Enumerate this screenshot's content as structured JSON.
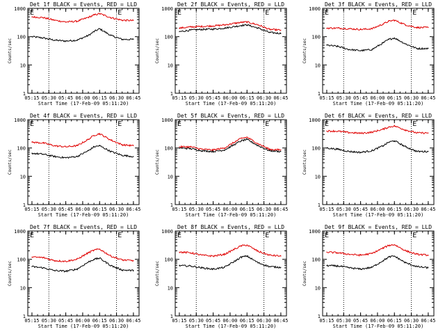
{
  "figure": {
    "title_template": "Det {n}f BLACK = Events, RED = LLD",
    "footer": "Start Time (17-Feb-09 05:11:20)",
    "xlabel": "Start Time (17-Feb-09 05:11:20)",
    "ylabel": "Counts/sec",
    "colors": {
      "events": "#000000",
      "lld": "#e00000",
      "axes": "#000000"
    }
  },
  "chart_data": [
    {
      "type": "line",
      "panel": "det-1f",
      "title": "Det 1f BLACK = Events, RED = LLD",
      "xlabel": "Start Time (17-Feb-09 05:11:20)",
      "ylabel": "Counts/sec",
      "x_ticks": [
        "05:15",
        "05:30",
        "05:45",
        "06:00",
        "06:15",
        "06:30",
        "06:45"
      ],
      "y_ticks": [
        "1",
        "10",
        "100",
        "1000"
      ],
      "y_scale": "log",
      "ylim": [
        1,
        1000
      ],
      "xlim": [
        "05:11:20",
        "06:50:00"
      ],
      "x": [
        "05:15",
        "05:25",
        "05:35",
        "05:45",
        "05:55",
        "06:05",
        "06:10",
        "06:15",
        "06:25",
        "06:35",
        "06:45"
      ],
      "series": [
        {
          "values": [
            100,
            90,
            75,
            70,
            75,
            110,
            150,
            190,
            110,
            80,
            80
          ]
        },
        {
          "values": [
            500,
            470,
            380,
            330,
            350,
            480,
            580,
            650,
            470,
            380,
            370
          ]
        }
      ],
      "markers": [
        "E"
      ]
    },
    {
      "type": "line",
      "panel": "det-2f",
      "title": "Det 2f BLACK = Events, RED = LLD",
      "xlabel": "Start Time (17-Feb-09 05:11:20)",
      "ylabel": "Counts/sec",
      "x_ticks": [
        "05:15",
        "05:30",
        "05:45",
        "06:00",
        "06:15",
        "06:30",
        "06:45"
      ],
      "y_ticks": [
        "1",
        "10",
        "100",
        "1000"
      ],
      "y_scale": "log",
      "ylim": [
        1,
        1000
      ],
      "xlim": [
        "05:11:20",
        "06:50:00"
      ],
      "x": [
        "05:15",
        "05:25",
        "05:35",
        "05:45",
        "05:55",
        "06:05",
        "06:10",
        "06:15",
        "06:25",
        "06:35",
        "06:45"
      ],
      "series": [
        {
          "values": [
            150,
            170,
            180,
            185,
            200,
            230,
            250,
            260,
            200,
            140,
            130
          ]
        },
        {
          "values": [
            200,
            220,
            230,
            240,
            260,
            300,
            320,
            330,
            260,
            180,
            170
          ]
        }
      ],
      "markers": [
        "E"
      ]
    },
    {
      "type": "line",
      "panel": "det-3f",
      "title": "Det 3f BLACK = Events, RED = LLD",
      "xlabel": "Start Time (17-Feb-09 05:11:20)",
      "ylabel": "Counts/sec",
      "x_ticks": [
        "05:15",
        "05:30",
        "05:45",
        "06:00",
        "06:15",
        "06:30",
        "06:45"
      ],
      "y_ticks": [
        "1",
        "10",
        "100",
        "1000"
      ],
      "y_scale": "log",
      "ylim": [
        1,
        1000
      ],
      "xlim": [
        "05:11:20",
        "06:50:00"
      ],
      "x": [
        "05:15",
        "05:25",
        "05:35",
        "05:45",
        "05:55",
        "06:05",
        "06:10",
        "06:15",
        "06:25",
        "06:35",
        "06:45"
      ],
      "series": [
        {
          "values": [
            50,
            45,
            35,
            32,
            35,
            60,
            80,
            90,
            55,
            38,
            38
          ]
        },
        {
          "values": [
            200,
            200,
            190,
            180,
            190,
            280,
            350,
            380,
            260,
            210,
            210
          ]
        }
      ],
      "markers": [
        "E"
      ]
    },
    {
      "type": "line",
      "panel": "det-4f",
      "title": "Det 4f BLACK = Events, RED = LLD",
      "xlabel": "Start Time (17-Feb-09 05:11:20)",
      "ylabel": "Counts/sec",
      "x_ticks": [
        "05:15",
        "05:30",
        "05:45",
        "06:00",
        "06:15",
        "06:30",
        "06:45"
      ],
      "y_ticks": [
        "1",
        "10",
        "100",
        "1000"
      ],
      "y_scale": "log",
      "ylim": [
        1,
        1000
      ],
      "xlim": [
        "05:11:20",
        "06:50:00"
      ],
      "x": [
        "05:15",
        "05:25",
        "05:35",
        "05:45",
        "05:55",
        "06:05",
        "06:10",
        "06:15",
        "06:25",
        "06:35",
        "06:45"
      ],
      "series": [
        {
          "values": [
            65,
            60,
            50,
            45,
            50,
            80,
            110,
            120,
            75,
            55,
            50
          ]
        },
        {
          "values": [
            160,
            150,
            120,
            110,
            120,
            200,
            280,
            320,
            190,
            130,
            120
          ]
        }
      ],
      "markers": [
        "E"
      ]
    },
    {
      "type": "line",
      "panel": "det-5f",
      "title": "Det 5f BLACK = Events, RED = LLD",
      "xlabel": "Start Time (17-Feb-09 05:11:20)",
      "ylabel": "Counts/sec",
      "x_ticks": [
        "05:15",
        "05:30",
        "05:45",
        "06:00",
        "06:15",
        "06:30",
        "06:45"
      ],
      "y_ticks": [
        "1",
        "10",
        "100",
        "1000"
      ],
      "y_scale": "log",
      "ylim": [
        1,
        1000
      ],
      "xlim": [
        "05:11:20",
        "06:50:00"
      ],
      "x": [
        "05:15",
        "05:25",
        "05:35",
        "05:45",
        "05:55",
        "06:05",
        "06:10",
        "06:15",
        "06:25",
        "06:35",
        "06:45"
      ],
      "series": [
        {
          "values": [
            100,
            95,
            80,
            75,
            85,
            140,
            180,
            200,
            120,
            80,
            75
          ]
        },
        {
          "values": [
            110,
            110,
            90,
            85,
            100,
            170,
            220,
            240,
            140,
            90,
            85
          ]
        }
      ],
      "markers": [
        "E"
      ]
    },
    {
      "type": "line",
      "panel": "det-6f",
      "title": "Det 6f BLACK = Events, RED = LLD",
      "xlabel": "Start Time (17-Feb-09 05:11:20)",
      "ylabel": "Counts/sec",
      "x_ticks": [
        "05:15",
        "05:30",
        "05:45",
        "06:00",
        "06:15",
        "06:30",
        "06:45"
      ],
      "y_ticks": [
        "1",
        "10",
        "100",
        "1000"
      ],
      "y_scale": "log",
      "ylim": [
        1,
        1000
      ],
      "xlim": [
        "05:11:20",
        "06:50:00"
      ],
      "x": [
        "05:15",
        "05:25",
        "05:35",
        "05:45",
        "05:55",
        "06:05",
        "06:10",
        "06:15",
        "06:25",
        "06:35",
        "06:45"
      ],
      "series": [
        {
          "values": [
            100,
            90,
            75,
            70,
            80,
            120,
            160,
            180,
            110,
            75,
            75
          ]
        },
        {
          "values": [
            400,
            390,
            350,
            330,
            360,
            460,
            550,
            600,
            430,
            340,
            340
          ]
        }
      ],
      "markers": [
        "E"
      ]
    },
    {
      "type": "line",
      "panel": "det-7f",
      "title": "Det 7f BLACK = Events, RED = LLD",
      "xlabel": "Start Time (17-Feb-09 05:11:20)",
      "ylabel": "Counts/sec",
      "x_ticks": [
        "05:15",
        "05:30",
        "05:45",
        "06:00",
        "06:15",
        "06:30",
        "06:45"
      ],
      "y_ticks": [
        "1",
        "10",
        "100",
        "1000"
      ],
      "y_scale": "log",
      "ylim": [
        1,
        1000
      ],
      "xlim": [
        "05:11:20",
        "06:50:00"
      ],
      "x": [
        "05:15",
        "05:25",
        "05:35",
        "05:45",
        "05:55",
        "06:05",
        "06:10",
        "06:15",
        "06:25",
        "06:35",
        "06:45"
      ],
      "series": [
        {
          "values": [
            55,
            50,
            40,
            38,
            45,
            80,
            100,
            110,
            60,
            42,
            40
          ]
        },
        {
          "values": [
            120,
            115,
            90,
            85,
            100,
            170,
            210,
            230,
            130,
            95,
            90
          ]
        }
      ],
      "markers": [
        "E"
      ]
    },
    {
      "type": "line",
      "panel": "det-8f",
      "title": "Det 8f BLACK = Events, RED = LLD",
      "xlabel": "Start Time (17-Feb-09 05:11:20)",
      "ylabel": "Counts/sec",
      "x_ticks": [
        "05:15",
        "05:30",
        "05:45",
        "06:00",
        "06:15",
        "06:30",
        "06:45"
      ],
      "y_ticks": [
        "1",
        "10",
        "100",
        "1000"
      ],
      "y_scale": "log",
      "ylim": [
        1,
        1000
      ],
      "xlim": [
        "05:11:20",
        "06:50:00"
      ],
      "x": [
        "05:15",
        "05:25",
        "05:35",
        "05:45",
        "05:55",
        "06:05",
        "06:10",
        "06:15",
        "06:25",
        "06:35",
        "06:45"
      ],
      "series": [
        {
          "values": [
            60,
            58,
            50,
            45,
            52,
            90,
            120,
            130,
            75,
            55,
            52
          ]
        },
        {
          "values": [
            180,
            170,
            140,
            130,
            150,
            240,
            300,
            320,
            190,
            140,
            130
          ]
        }
      ],
      "markers": [
        "E"
      ]
    },
    {
      "type": "line",
      "panel": "det-9f",
      "title": "Det 9f BLACK = Events, RED = LLD",
      "xlabel": "Start Time (17-Feb-09 05:11:20)",
      "ylabel": "Counts/sec",
      "x_ticks": [
        "05:15",
        "05:30",
        "05:45",
        "06:00",
        "06:15",
        "06:30",
        "06:45"
      ],
      "y_ticks": [
        "1",
        "10",
        "100",
        "1000"
      ],
      "y_scale": "log",
      "ylim": [
        1,
        1000
      ],
      "xlim": [
        "05:11:20",
        "06:50:00"
      ],
      "x": [
        "05:15",
        "05:25",
        "05:35",
        "05:45",
        "05:55",
        "06:05",
        "06:10",
        "06:15",
        "06:25",
        "06:35",
        "06:45"
      ],
      "series": [
        {
          "values": [
            60,
            58,
            50,
            45,
            52,
            90,
            120,
            130,
            75,
            55,
            50
          ]
        },
        {
          "values": [
            180,
            170,
            150,
            140,
            160,
            250,
            310,
            330,
            200,
            150,
            140
          ]
        }
      ],
      "markers": [
        "E"
      ]
    }
  ]
}
